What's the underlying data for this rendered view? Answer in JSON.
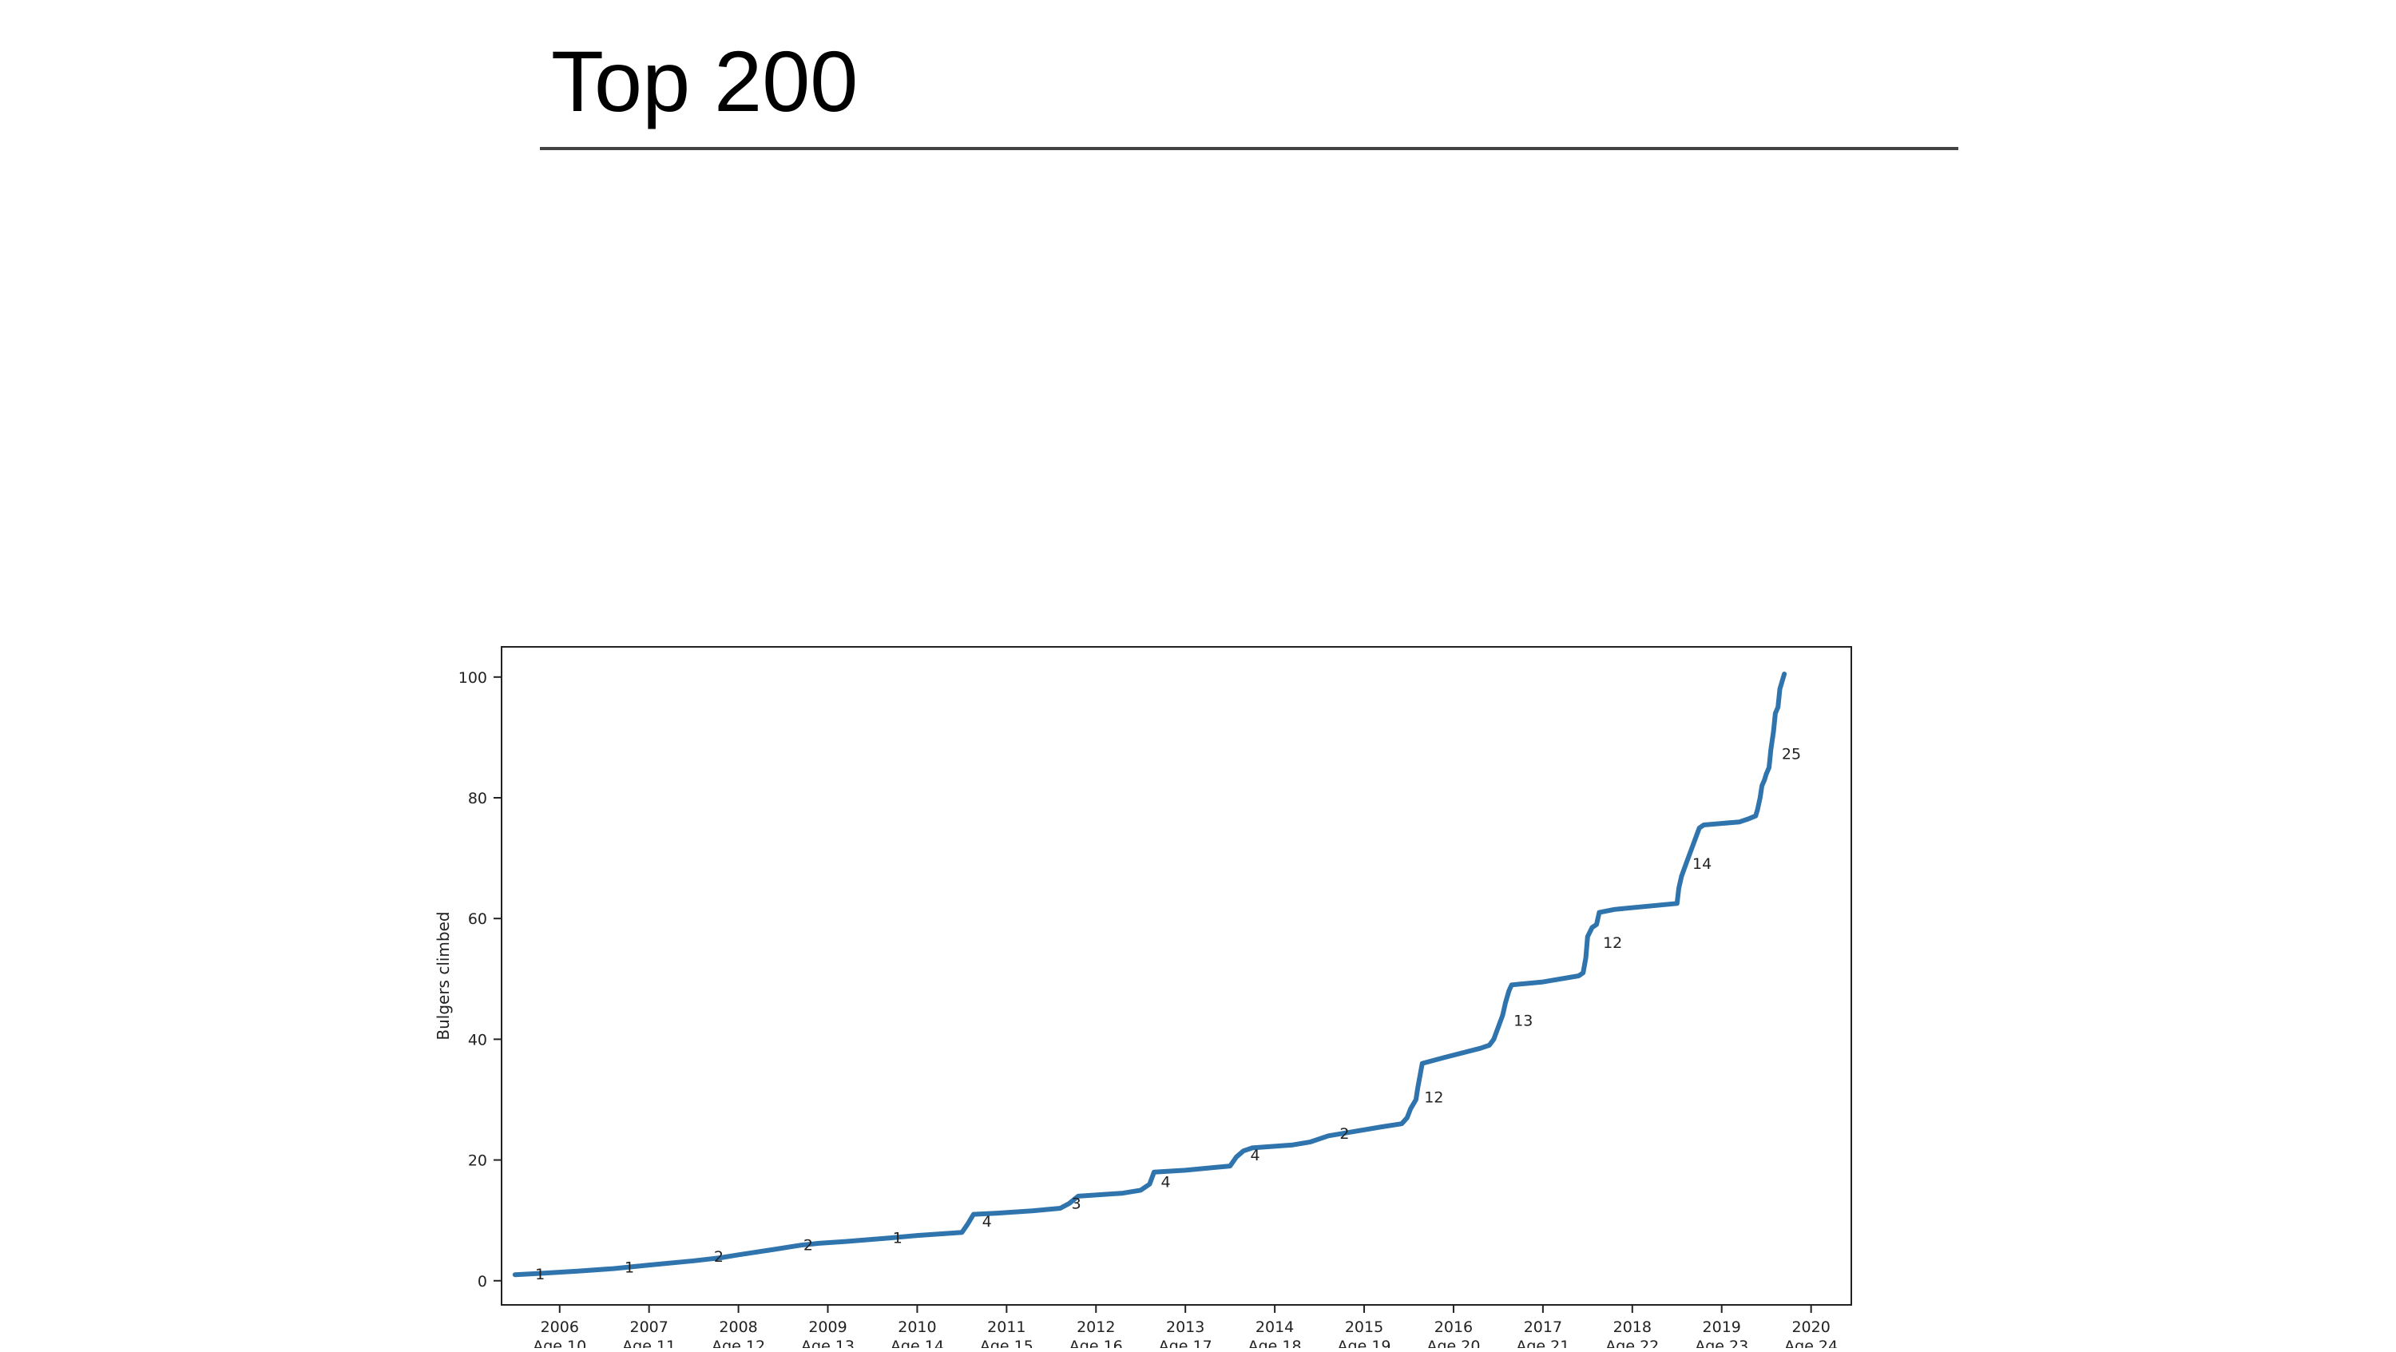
{
  "slide": {
    "title": "Top 200"
  },
  "chart_data": {
    "type": "line",
    "title": "",
    "xlabel": "",
    "ylabel": "Bulgers climbed",
    "xlim": [
      2005.35,
      2020.45
    ],
    "ylim": [
      -4,
      105
    ],
    "grid": false,
    "line_color": "#2f74ad",
    "y_ticks": [
      0,
      20,
      40,
      60,
      80,
      100
    ],
    "x_ticks": [
      {
        "value": 2006,
        "year": "2006",
        "age": "Age 10"
      },
      {
        "value": 2007,
        "year": "2007",
        "age": "Age 11"
      },
      {
        "value": 2008,
        "year": "2008",
        "age": "Age 12"
      },
      {
        "value": 2009,
        "year": "2009",
        "age": "Age 13"
      },
      {
        "value": 2010,
        "year": "2010",
        "age": "Age 14"
      },
      {
        "value": 2011,
        "year": "2011",
        "age": "Age 15"
      },
      {
        "value": 2012,
        "year": "2012",
        "age": "Age 16"
      },
      {
        "value": 2013,
        "year": "2013",
        "age": "Age 17"
      },
      {
        "value": 2014,
        "year": "2014",
        "age": "Age 18"
      },
      {
        "value": 2015,
        "year": "2015",
        "age": "Age 19"
      },
      {
        "value": 2016,
        "year": "2016",
        "age": "Age 20"
      },
      {
        "value": 2017,
        "year": "2017",
        "age": "Age 21"
      },
      {
        "value": 2018,
        "year": "2018",
        "age": "Age 22"
      },
      {
        "value": 2019,
        "year": "2019",
        "age": "Age 23"
      },
      {
        "value": 2020,
        "year": "2020",
        "age": "Age 24"
      }
    ],
    "series": [
      {
        "x": [
          2005.5,
          2005.75,
          2006.2,
          2006.6,
          2006.8,
          2007.0,
          2007.5,
          2007.8,
          2008.0,
          2008.4,
          2008.7,
          2008.9,
          2009.2,
          2009.7,
          2010.0,
          2010.5,
          2010.57,
          2010.63,
          2010.9,
          2011.3,
          2011.6,
          2011.7,
          2011.8,
          2012.3,
          2012.5,
          2012.6,
          2012.65,
          2013.0,
          2013.5,
          2013.57,
          2013.65,
          2013.75,
          2014.2,
          2014.4,
          2014.6,
          2014.8,
          2015.2,
          2015.42,
          2015.48,
          2015.52,
          2015.58,
          2015.6,
          2015.65,
          2015.9,
          2016.3,
          2016.4,
          2016.45,
          2016.5,
          2016.55,
          2016.58,
          2016.62,
          2016.65,
          2017.0,
          2017.4,
          2017.45,
          2017.48,
          2017.5,
          2017.55,
          2017.6,
          2017.63,
          2017.8,
          2018.5,
          2018.52,
          2018.55,
          2018.6,
          2018.65,
          2018.7,
          2018.75,
          2018.8,
          2019.2,
          2019.3,
          2019.38,
          2019.4,
          2019.43,
          2019.45,
          2019.48,
          2019.5,
          2019.53,
          2019.55,
          2019.58,
          2019.6,
          2019.63,
          2019.65,
          2019.7
        ],
        "y": [
          1,
          1.2,
          1.6,
          2,
          2.3,
          2.6,
          3.3,
          3.8,
          4.3,
          5.2,
          5.9,
          6.2,
          6.5,
          7.1,
          7.5,
          8,
          9.5,
          11,
          11.2,
          11.6,
          12,
          12.8,
          14,
          14.5,
          15,
          16,
          18,
          18.3,
          19,
          20.5,
          21.5,
          22,
          22.5,
          23,
          24,
          24.5,
          25.5,
          26,
          27,
          28.5,
          30,
          32,
          36,
          37,
          38.5,
          39,
          40,
          42,
          44,
          46,
          48,
          49,
          49.5,
          50.5,
          51,
          53.5,
          57,
          58.5,
          59,
          61,
          61.5,
          62.5,
          65,
          67,
          69,
          71,
          73,
          75,
          75.5,
          76,
          76.5,
          77,
          78,
          80,
          82,
          83,
          84,
          85,
          88,
          91,
          94,
          95,
          98,
          100.5
        ]
      }
    ],
    "annotations": [
      {
        "x": 2005.78,
        "y": 1.3,
        "text": "1"
      },
      {
        "x": 2006.78,
        "y": 2.4,
        "text": "1"
      },
      {
        "x": 2007.78,
        "y": 4.2,
        "text": "2"
      },
      {
        "x": 2008.78,
        "y": 6.1,
        "text": "2"
      },
      {
        "x": 2009.78,
        "y": 7.3,
        "text": "1"
      },
      {
        "x": 2010.78,
        "y": 10.0,
        "text": "4"
      },
      {
        "x": 2011.78,
        "y": 13.0,
        "text": "3"
      },
      {
        "x": 2012.78,
        "y": 16.6,
        "text": "4"
      },
      {
        "x": 2013.78,
        "y": 21.0,
        "text": "4"
      },
      {
        "x": 2014.78,
        "y": 24.6,
        "text": "2"
      },
      {
        "x": 2015.78,
        "y": 30.6,
        "text": "12"
      },
      {
        "x": 2016.78,
        "y": 43.3,
        "text": "13"
      },
      {
        "x": 2017.78,
        "y": 56.2,
        "text": "12"
      },
      {
        "x": 2018.78,
        "y": 69.3,
        "text": "14"
      },
      {
        "x": 2019.78,
        "y": 87.5,
        "text": "25"
      }
    ]
  }
}
